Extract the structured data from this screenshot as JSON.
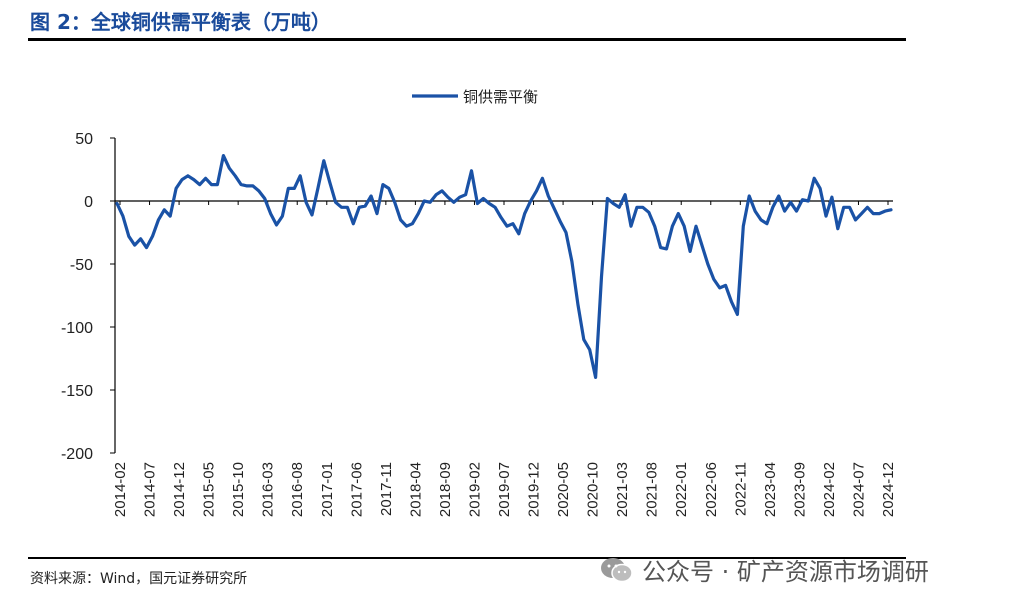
{
  "figure": {
    "title": "图 2：全球铜供需平衡表（万吨）",
    "source": "资料来源：Wind，国元证券研究所",
    "watermark": "公众号 · 矿产资源市场调研"
  },
  "colors": {
    "series": "#1a52a6",
    "title": "#1a4b9b"
  },
  "chart_data": {
    "type": "line",
    "title": "",
    "xlabel": "",
    "ylabel": "",
    "ylim": [
      -200,
      50
    ],
    "yticks": [
      50,
      0,
      -50,
      -100,
      -150,
      -200
    ],
    "xtick_labels": [
      "2014-02",
      "2014-07",
      "2014-12",
      "2015-05",
      "2015-10",
      "2016-03",
      "2016-08",
      "2017-01",
      "2017-06",
      "2017-11",
      "2018-04",
      "2018-09",
      "2019-02",
      "2019-07",
      "2019-12",
      "2020-05",
      "2020-10",
      "2021-03",
      "2021-08",
      "2022-01",
      "2022-06",
      "2022-11",
      "2023-04",
      "2023-09",
      "2024-02",
      "2024-07",
      "2024-12"
    ],
    "legend": {
      "position": "top-center",
      "entries": [
        "铜供需平衡"
      ]
    },
    "series": [
      {
        "name": "铜供需平衡",
        "values": [
          -2,
          -12,
          -28,
          -35,
          -30,
          -37,
          -28,
          -15,
          -7,
          -12,
          10,
          17,
          20,
          17,
          13,
          18,
          13,
          13,
          36,
          26,
          20,
          13,
          12,
          12,
          8,
          2,
          -10,
          -19,
          -12,
          10,
          10,
          20,
          -1,
          -11,
          10,
          32,
          15,
          -1,
          -5,
          -5,
          -18,
          -5,
          -4,
          4,
          -10,
          13,
          10,
          -1,
          -15,
          -20,
          -18,
          -10,
          0,
          -1,
          5,
          8,
          3,
          -1,
          3,
          5,
          24,
          -2,
          2,
          -2,
          -5,
          -13,
          -20,
          -18,
          -26,
          -10,
          0,
          8,
          18,
          4,
          -6,
          -16,
          -25,
          -48,
          -82,
          -110,
          -118,
          -140,
          -60,
          2,
          -2,
          -5,
          5,
          -20,
          -5,
          -5,
          -9,
          -20,
          -37,
          -38,
          -20,
          -10,
          -20,
          -40,
          -20,
          -35,
          -50,
          -62,
          -69,
          -67,
          -80,
          -90,
          -20,
          4,
          -8,
          -15,
          -18,
          -5,
          4,
          -8,
          -1,
          -8,
          1,
          0,
          18,
          10,
          -12,
          3,
          -22,
          -5,
          -5,
          -15,
          -10,
          -5,
          -10,
          -10,
          -8,
          -7
        ]
      }
    ]
  }
}
